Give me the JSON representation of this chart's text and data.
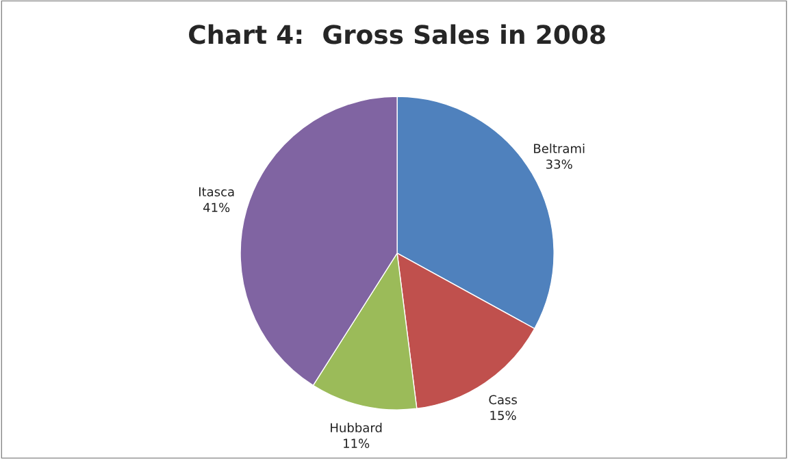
{
  "chart_data": {
    "type": "pie",
    "title": "Chart 4:  Gross Sales in 2008",
    "categories": [
      "Beltrami",
      "Cass",
      "Hubbard",
      "Itasca"
    ],
    "values": [
      33,
      15,
      11,
      41
    ],
    "colors": [
      "#4f81bd",
      "#c0504d",
      "#9bbb59",
      "#8064a2"
    ],
    "value_labels": [
      "33%",
      "15%",
      "11%",
      "41%"
    ],
    "legend": false
  }
}
